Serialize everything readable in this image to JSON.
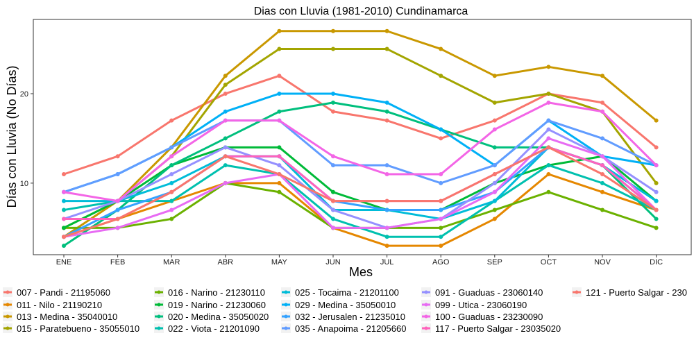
{
  "chart_data": {
    "type": "line",
    "title": "Dias con Lluvia (1981-2010)  Cundinamarca",
    "xlabel": "Mes",
    "ylabel": "Días con Lluvia (No Días)",
    "categories": [
      "ENE",
      "FEB",
      "MAR",
      "ABR",
      "MAY",
      "JUN",
      "JUL",
      "AGO",
      "SEP",
      "OCT",
      "NOV",
      "DIC"
    ],
    "ylim": [
      2,
      28.3
    ],
    "yticks": [
      10,
      20
    ],
    "grid": false,
    "legend_position": "bottom",
    "series": [
      {
        "name": "007 - Pandi - 21195060",
        "color": "#F8766D",
        "values": [
          11,
          13,
          17,
          20,
          22,
          18,
          17,
          15,
          17,
          20,
          19,
          14
        ]
      },
      {
        "name": "011 - Nilo - 21190210",
        "color": "#E58700",
        "values": [
          4,
          6,
          8,
          10,
          10,
          5,
          3,
          3,
          6,
          11,
          9,
          7
        ]
      },
      {
        "name": "013 - Medina - 35040010",
        "color": "#C99800",
        "values": [
          4,
          8,
          14,
          22,
          27,
          27,
          27,
          25,
          22,
          23,
          22,
          17
        ]
      },
      {
        "name": "015 - Paratebueno - 35055010",
        "color": "#A3A500",
        "values": [
          5,
          8,
          13,
          21,
          25,
          25,
          25,
          22,
          19,
          20,
          18,
          10
        ]
      },
      {
        "name": "016 - Narino - 21230110",
        "color": "#6BB100",
        "values": [
          5,
          5,
          6,
          10,
          9,
          5,
          5,
          5,
          7,
          9,
          7,
          5
        ]
      },
      {
        "name": "019 - Narino - 21230060",
        "color": "#00BA38",
        "values": [
          5,
          8,
          12,
          14,
          14,
          9,
          7,
          7,
          10,
          12,
          13,
          8
        ]
      },
      {
        "name": "020 - Medina - 35050020",
        "color": "#00BF7D",
        "values": [
          3,
          7,
          12,
          15,
          18,
          19,
          18,
          16,
          14,
          14,
          12,
          6
        ]
      },
      {
        "name": "022 - Viota - 21201090",
        "color": "#00C0AF",
        "values": [
          7,
          8,
          8,
          12,
          11,
          6,
          4,
          4,
          8,
          12,
          10,
          7
        ]
      },
      {
        "name": "025 - Tocaima - 21201100",
        "color": "#00BCD8",
        "values": [
          8,
          8,
          10,
          13,
          13,
          7,
          7,
          6,
          8,
          14,
          12,
          8
        ]
      },
      {
        "name": "029 - Medina - 35050010",
        "color": "#00B0F6",
        "values": [
          9,
          11,
          14,
          18,
          20,
          20,
          19,
          16,
          12,
          17,
          13,
          12
        ]
      },
      {
        "name": "032 - Jerusalen - 21235010",
        "color": "#35A2FF",
        "values": [
          4,
          7,
          9,
          13,
          13,
          8,
          7,
          7,
          9,
          14,
          12,
          7
        ]
      },
      {
        "name": "035 - Anapoima - 21205660",
        "color": "#619CFF",
        "values": [
          9,
          11,
          14,
          17,
          17,
          12,
          12,
          10,
          12,
          17,
          15,
          12
        ]
      },
      {
        "name": "091 - Guaduas - 23060140",
        "color": "#9590FF",
        "values": [
          6,
          8,
          11,
          14,
          12,
          7,
          5,
          6,
          10,
          16,
          13,
          9
        ]
      },
      {
        "name": "099 - Utica - 23060190",
        "color": "#E76BF3",
        "values": [
          4,
          5,
          7,
          10,
          11,
          5,
          5,
          6,
          9,
          15,
          13,
          7
        ]
      },
      {
        "name": "100 - Guaduas - 23230090",
        "color": "#F365E6",
        "values": [
          9,
          8,
          13,
          17,
          17,
          13,
          11,
          11,
          16,
          19,
          18,
          12
        ]
      },
      {
        "name": "117 - Puerto Salgar - 23035020",
        "color": "#FF62BC",
        "values": [
          6,
          6,
          9,
          13,
          13,
          8,
          8,
          8,
          11,
          14,
          12,
          7
        ]
      },
      {
        "name": "121 - Puerto Salgar - 230",
        "color": "#F8766D",
        "values": [
          4,
          6,
          9,
          13,
          11,
          8,
          8,
          8,
          11,
          14,
          11,
          7
        ]
      }
    ]
  }
}
